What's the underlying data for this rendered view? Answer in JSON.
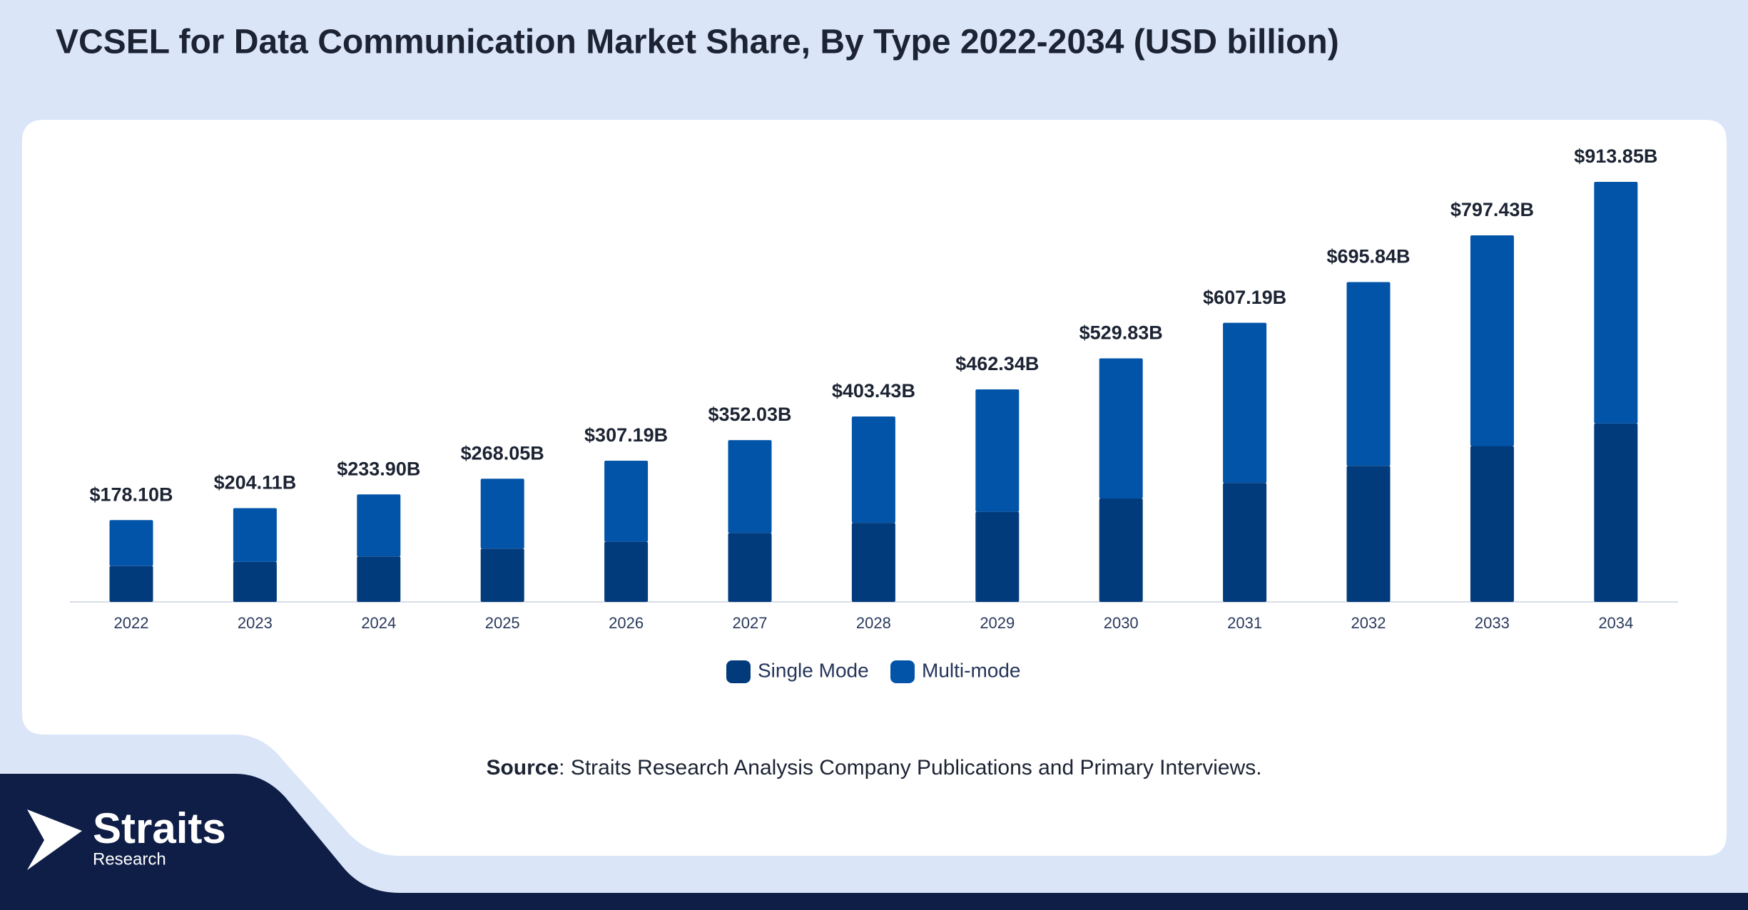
{
  "chart_data": {
    "type": "stacked-bar",
    "title": "VCSEL for Data Communication Market Share, By Type 2022-2034 (USD billion)",
    "categories": [
      "2022",
      "2023",
      "2024",
      "2025",
      "2026",
      "2027",
      "2028",
      "2029",
      "2030",
      "2031",
      "2032",
      "2033",
      "2034"
    ],
    "series": [
      {
        "name": "Single Mode",
        "color": "#023b7b",
        "values": [
          78,
          87,
          99,
          116,
          131,
          150,
          172,
          196,
          225,
          259,
          296,
          339,
          388
        ]
      },
      {
        "name": "Multi-mode",
        "color": "#0254a8",
        "values": [
          100.1,
          117.11,
          134.9,
          152.05,
          176.19,
          202.03,
          231.43,
          266.34,
          304.83,
          348.19,
          399.84,
          458.43,
          525.85
        ]
      }
    ],
    "totals": {
      "values": [
        178.1,
        204.11,
        233.9,
        268.05,
        307.19,
        352.03,
        403.43,
        462.34,
        529.83,
        607.19,
        695.84,
        797.43,
        913.85
      ],
      "value_labels": [
        "$178.10B",
        "$204.11B",
        "$233.90B",
        "$268.05B",
        "$307.19B",
        "$352.03B",
        "$403.43B",
        "$462.34B",
        "$529.83B",
        "$607.19B",
        "$695.84B",
        "$797.43B",
        "$913.85B"
      ]
    },
    "legend": "bottom"
  },
  "source": {
    "label": "Source",
    "text": ": Straits Research Analysis Company Publications and Primary Interviews."
  },
  "logo": {
    "name": "Straits",
    "sub": "Research"
  }
}
